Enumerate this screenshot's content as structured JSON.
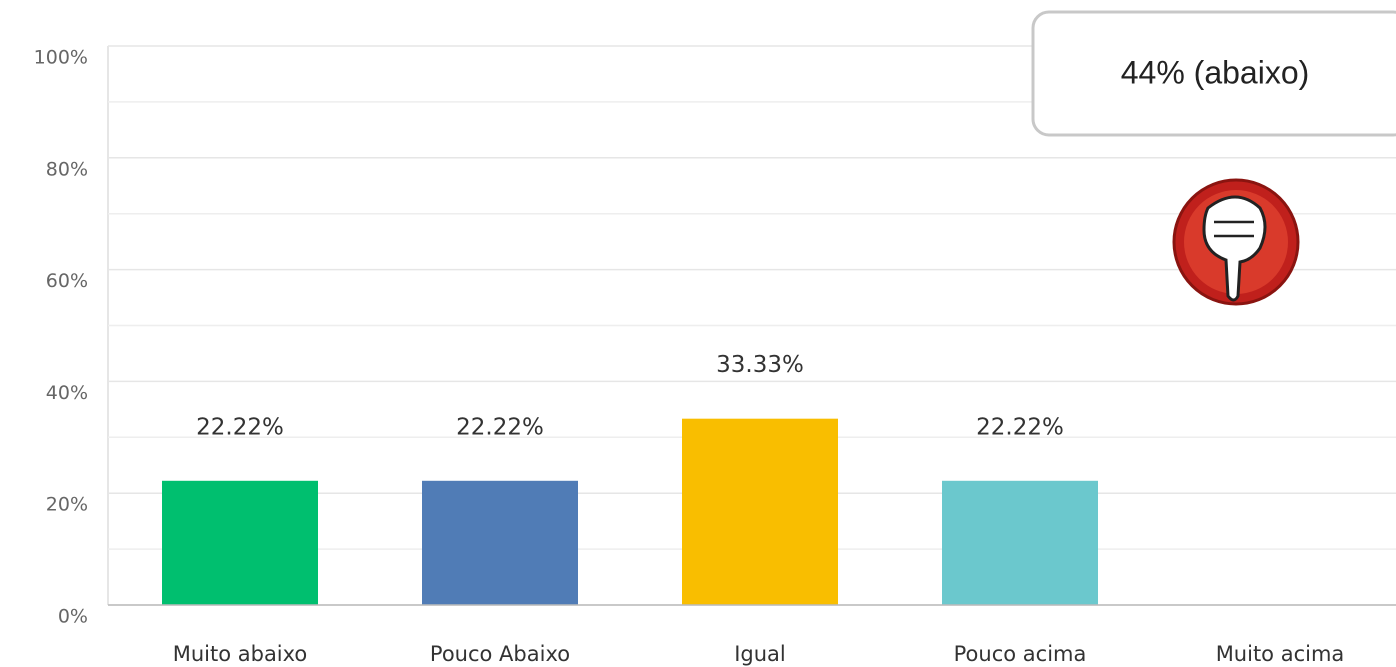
{
  "chart_data": {
    "type": "bar",
    "categories": [
      "Muito abaixo",
      "Pouco Abaixo",
      "Igual",
      "Pouco acima",
      "Muito acima"
    ],
    "values": [
      22.22,
      22.22,
      33.33,
      22.22,
      0
    ],
    "value_labels": [
      "22.22%",
      "22.22%",
      "33.33%",
      "22.22%",
      null
    ],
    "colors": [
      "#00bf6f",
      "#507cb6",
      "#f9be00",
      "#6bc8cd",
      null
    ],
    "ylim": [
      0,
      100
    ],
    "yticks": [
      {
        "value": 0,
        "label": "0%"
      },
      {
        "value": 20,
        "label": "20%"
      },
      {
        "value": 40,
        "label": "40%"
      },
      {
        "value": 60,
        "label": "60%"
      },
      {
        "value": 80,
        "label": "80%"
      },
      {
        "value": 100,
        "label": "100%"
      }
    ],
    "minor_yticks": [
      10,
      30,
      50,
      70,
      90
    ],
    "grid": true,
    "annotation": "44% (abaixo)"
  }
}
